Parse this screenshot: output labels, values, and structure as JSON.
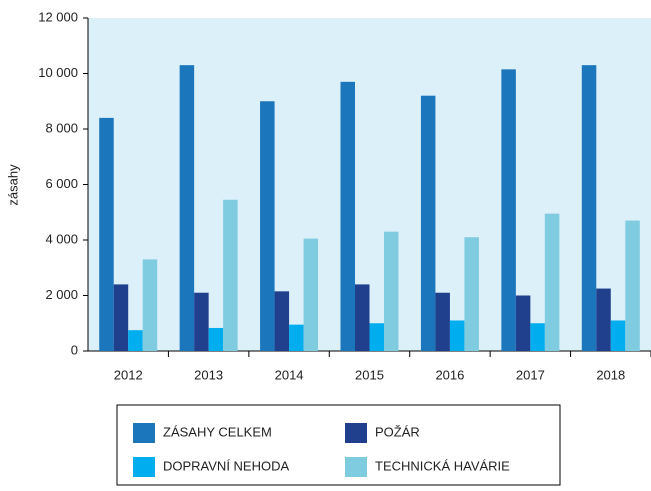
{
  "chart_data": {
    "type": "bar",
    "y_label": "zásahy",
    "categories": [
      "2012",
      "2013",
      "2014",
      "2015",
      "2016",
      "2017",
      "2018"
    ],
    "series": [
      {
        "name": "ZÁSAHY CELKEM",
        "color": "#1b76bc",
        "values": [
          8400,
          10300,
          9000,
          9700,
          9200,
          10150,
          10300
        ]
      },
      {
        "name": "POŽÁR",
        "color": "#203f8d",
        "values": [
          2400,
          2100,
          2150,
          2400,
          2100,
          2000,
          2250
        ]
      },
      {
        "name": "DOPRAVNÍ NEHODA",
        "color": "#00aeef",
        "values": [
          750,
          830,
          950,
          1000,
          1100,
          1000,
          1100
        ]
      },
      {
        "name": "TECHNICKÁ HAVÁRIE",
        "color": "#7fcbe0",
        "values": [
          3300,
          5450,
          4050,
          4300,
          4100,
          4950,
          4700
        ]
      }
    ],
    "ylim": [
      0,
      12000
    ],
    "yticks": [
      0,
      {
        "value": 2000,
        "label": "2 000"
      },
      {
        "value": 4000,
        "label": "4 000"
      },
      {
        "value": 6000,
        "label": "6 000"
      },
      {
        "value": 8000,
        "label": "8 000"
      },
      {
        "value": 10000,
        "label": "10 000"
      },
      {
        "value": 12000,
        "label": "12 000"
      }
    ],
    "plot_background": "#dcf0fa"
  }
}
